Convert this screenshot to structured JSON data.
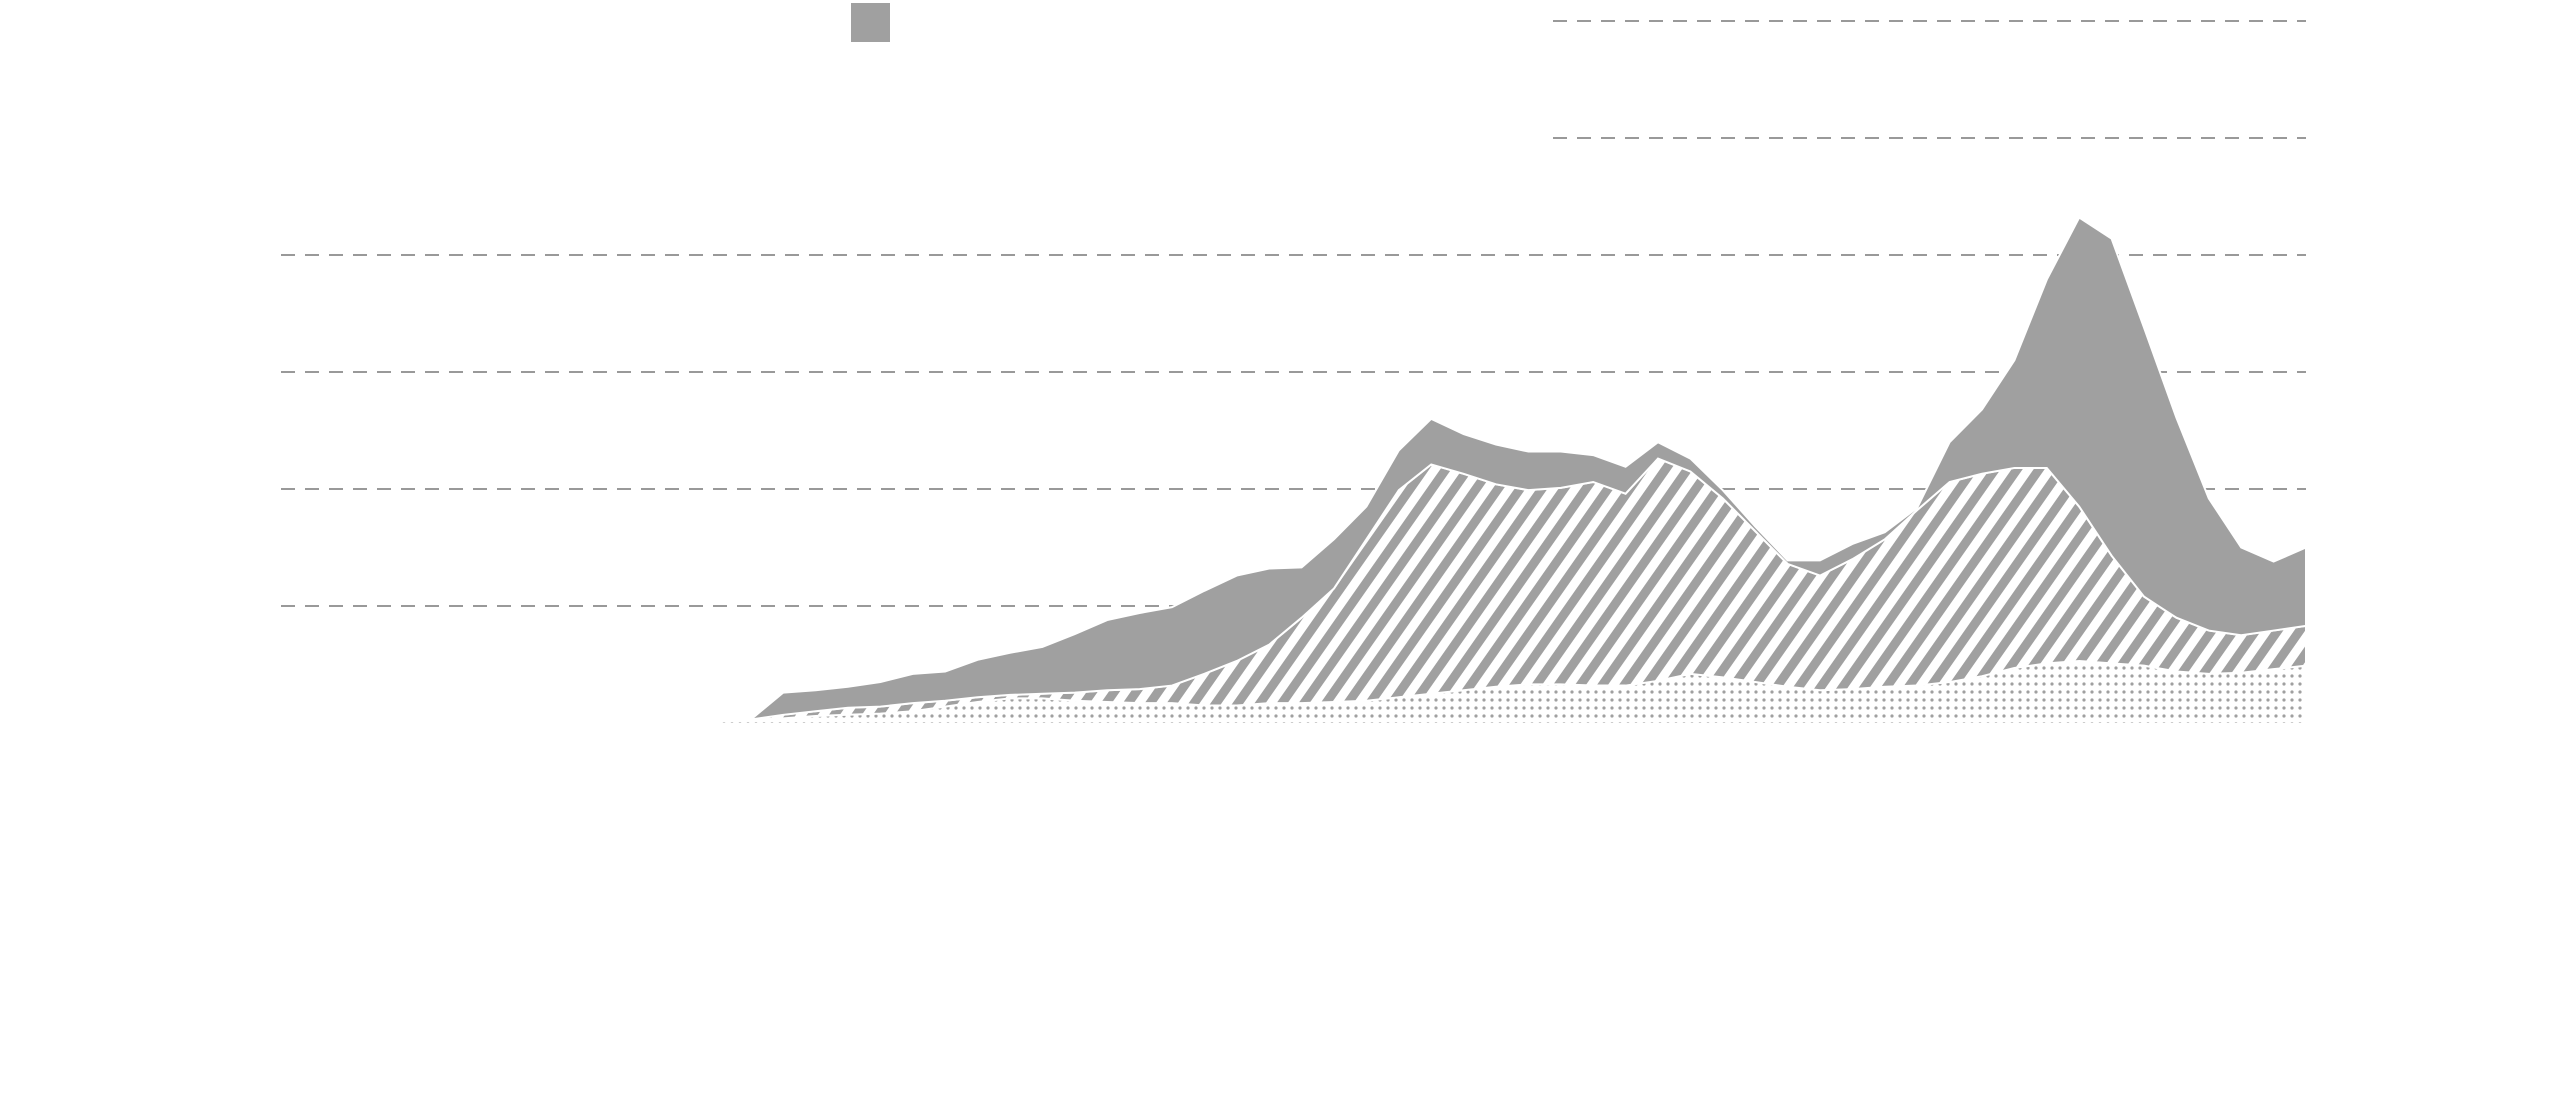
{
  "chart_data": {
    "type": "stacked-area",
    "x": [
      0,
      1,
      2,
      3,
      4,
      5,
      6,
      7,
      8,
      9,
      10,
      11,
      12,
      13,
      14,
      15,
      16,
      17,
      18,
      19,
      20,
      21,
      22,
      23,
      24,
      25,
      26,
      27,
      28,
      29,
      30,
      31,
      32,
      33,
      34,
      35,
      36,
      37,
      38,
      39,
      40,
      41,
      42,
      43,
      44,
      45,
      46,
      47,
      48,
      49,
      50
    ],
    "xlim": [
      0,
      50
    ],
    "ylim": [
      0,
      6
    ],
    "yticks": [
      1,
      2,
      3,
      4,
      5,
      6
    ],
    "grid": true,
    "series": [
      {
        "color": "#a0a0a0",
        "pattern": "dots",
        "values": [
          0,
          0.01,
          0.03,
          0.04,
          0.06,
          0.07,
          0.08,
          0.1,
          0.14,
          0.18,
          0.21,
          0.21,
          0.19,
          0.18,
          0.17,
          0.17,
          0.15,
          0.15,
          0.17,
          0.17,
          0.18,
          0.19,
          0.22,
          0.25,
          0.28,
          0.31,
          0.33,
          0.33,
          0.32,
          0.32,
          0.36,
          0.42,
          0.39,
          0.35,
          0.31,
          0.28,
          0.29,
          0.31,
          0.32,
          0.35,
          0.4,
          0.47,
          0.51,
          0.53,
          0.51,
          0.49,
          0.44,
          0.42,
          0.43,
          0.46,
          0.49
        ]
      },
      {
        "color": "#a0a0a0",
        "pattern": "hatch",
        "values": [
          0,
          0,
          0,
          0.03,
          0.04,
          0.06,
          0.06,
          0.07,
          0.05,
          0.04,
          0.03,
          0.04,
          0.07,
          0.1,
          0.12,
          0.15,
          0.27,
          0.38,
          0.5,
          0.73,
          0.97,
          1.38,
          1.77,
          1.96,
          1.85,
          1.73,
          1.66,
          1.68,
          1.74,
          1.64,
          1.9,
          1.73,
          1.53,
          1.29,
          1.05,
          0.98,
          1.11,
          1.26,
          1.5,
          1.71,
          1.73,
          1.71,
          1.67,
          1.32,
          0.92,
          0.59,
          0.46,
          0.37,
          0.32,
          0.33,
          0.34
        ]
      },
      {
        "color": "#a0a0a0",
        "pattern": "solid",
        "values": [
          0,
          0,
          0,
          0.19,
          0.18,
          0.18,
          0.21,
          0.25,
          0.25,
          0.32,
          0.36,
          0.4,
          0.5,
          0.6,
          0.65,
          0.67,
          0.71,
          0.73,
          0.65,
          0.43,
          0.42,
          0.28,
          0.34,
          0.39,
          0.34,
          0.34,
          0.33,
          0.31,
          0.23,
          0.23,
          0.14,
          0.11,
          0.07,
          0.04,
          0.03,
          0.13,
          0.13,
          0.06,
          0.02,
          0.34,
          0.55,
          0.92,
          1.61,
          2.47,
          2.71,
          2.3,
          1.71,
          1.13,
          0.75,
          0.59,
          0.67
        ]
      }
    ]
  }
}
